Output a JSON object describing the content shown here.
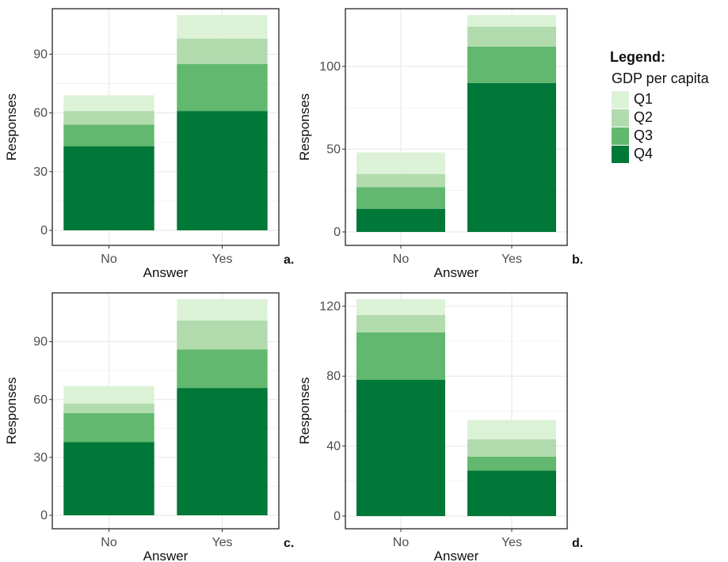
{
  "legend": {
    "title": "Legend:",
    "subtitle": "GDP per capita",
    "items": [
      {
        "label": "Q1",
        "color": "#dcf2d7"
      },
      {
        "label": "Q2",
        "color": "#b2dbad"
      },
      {
        "label": "Q3",
        "color": "#61b86e"
      },
      {
        "label": "Q4",
        "color": "#007837"
      }
    ]
  },
  "chart_data": [
    {
      "type": "bar",
      "stacked": true,
      "panel_label": "a.",
      "xlabel": "Answer",
      "ylabel": "Responses",
      "categories": [
        "No",
        "Yes"
      ],
      "ylim": [
        0,
        110
      ],
      "yticks": [
        0,
        30,
        60,
        90
      ],
      "series": [
        {
          "name": "Q4",
          "values": [
            43,
            61
          ]
        },
        {
          "name": "Q3",
          "values": [
            11,
            24
          ]
        },
        {
          "name": "Q2",
          "values": [
            7,
            13
          ]
        },
        {
          "name": "Q1",
          "values": [
            8,
            12
          ]
        }
      ]
    },
    {
      "type": "bar",
      "stacked": true,
      "panel_label": "b.",
      "xlabel": "Answer",
      "ylabel": "Responses",
      "categories": [
        "No",
        "Yes"
      ],
      "ylim": [
        0,
        131
      ],
      "yticks": [
        0,
        50,
        100
      ],
      "series": [
        {
          "name": "Q4",
          "values": [
            14,
            90
          ]
        },
        {
          "name": "Q3",
          "values": [
            13,
            22
          ]
        },
        {
          "name": "Q2",
          "values": [
            8,
            12
          ]
        },
        {
          "name": "Q1",
          "values": [
            13,
            7
          ]
        }
      ]
    },
    {
      "type": "bar",
      "stacked": true,
      "panel_label": "c.",
      "xlabel": "Answer",
      "ylabel": "Responses",
      "categories": [
        "No",
        "Yes"
      ],
      "ylim": [
        0,
        112
      ],
      "yticks": [
        0,
        30,
        60,
        90
      ],
      "series": [
        {
          "name": "Q4",
          "values": [
            38,
            66
          ]
        },
        {
          "name": "Q3",
          "values": [
            15,
            20
          ]
        },
        {
          "name": "Q2",
          "values": [
            5,
            15
          ]
        },
        {
          "name": "Q1",
          "values": [
            9,
            11
          ]
        }
      ]
    },
    {
      "type": "bar",
      "stacked": true,
      "panel_label": "d.",
      "xlabel": "Answer",
      "ylabel": "Responses",
      "categories": [
        "No",
        "Yes"
      ],
      "ylim": [
        0,
        124
      ],
      "yticks": [
        0,
        40,
        80,
        120
      ],
      "series": [
        {
          "name": "Q4",
          "values": [
            78,
            26
          ]
        },
        {
          "name": "Q3",
          "values": [
            27,
            8
          ]
        },
        {
          "name": "Q2",
          "values": [
            10,
            10
          ]
        },
        {
          "name": "Q1",
          "values": [
            9,
            11
          ]
        }
      ]
    }
  ]
}
